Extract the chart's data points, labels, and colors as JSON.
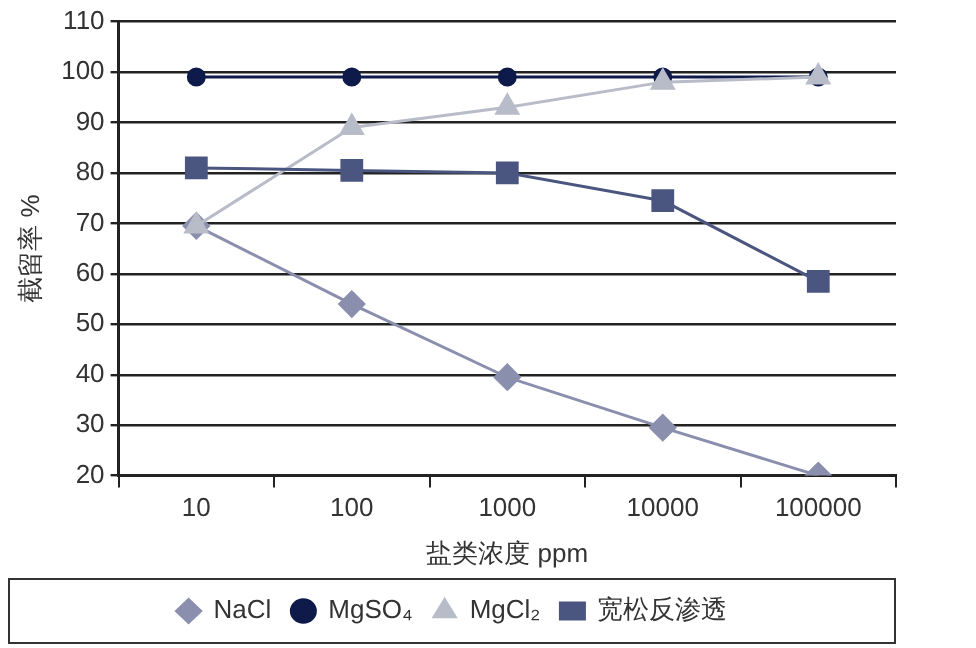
{
  "chart_data": {
    "type": "line",
    "xlabel": "盐类浓度 ppm",
    "ylabel": "截留率 %",
    "categories": [
      "10",
      "100",
      "1000",
      "10000",
      "100000"
    ],
    "series": [
      {
        "name": "NaCl",
        "color": "#8b8fae",
        "marker": "diamond",
        "values": [
          69.5,
          54,
          39.5,
          29.5,
          20
        ]
      },
      {
        "name": "MgSO₄",
        "color": "#0d1a4a",
        "marker": "circle",
        "values": [
          99,
          99,
          99,
          99,
          99
        ]
      },
      {
        "name": "MgCl₂",
        "color": "#b8bcc8",
        "marker": "triangle",
        "values": [
          69.5,
          89,
          93,
          98,
          99
        ]
      },
      {
        "name": "宽松反渗透",
        "color": "#4a5580",
        "marker": "square",
        "values": [
          81,
          80.5,
          80,
          74.5,
          58.5
        ]
      }
    ],
    "ylim": [
      20,
      110
    ],
    "yticks": [
      20,
      30,
      40,
      50,
      60,
      70,
      80,
      90,
      100,
      110
    ],
    "grid": "y",
    "legend": "bottom",
    "line_style": "solid"
  }
}
